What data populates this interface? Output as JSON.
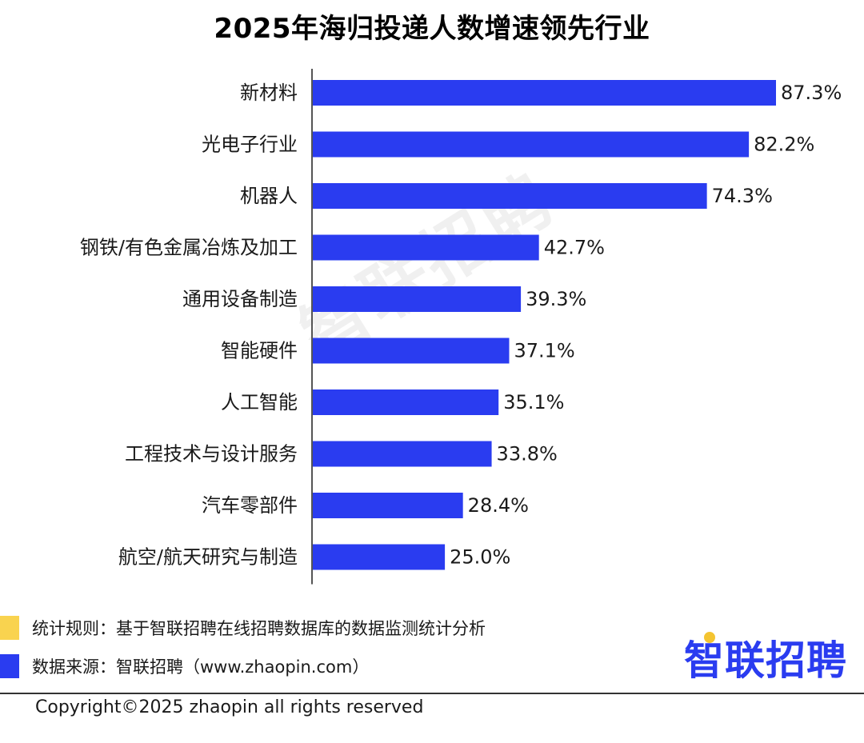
{
  "title": "2025年海归投递人数增速领先行业",
  "watermark": "智联招聘",
  "chart_data": {
    "type": "bar",
    "orientation": "horizontal",
    "title": "2025年海归投递人数增速领先行业",
    "categories": [
      "新材料",
      "光电子行业",
      "机器人",
      "钢铁/有色金属冶炼及加工",
      "通用设备制造",
      "智能硬件",
      "人工智能",
      "工程技术与设计服务",
      "汽车零部件",
      "航空/航天研究与制造"
    ],
    "values": [
      87.3,
      82.2,
      74.3,
      42.7,
      39.3,
      37.1,
      35.1,
      33.8,
      28.4,
      25.0
    ],
    "value_labels": [
      "87.3%",
      "82.2%",
      "74.3%",
      "42.7%",
      "39.3%",
      "37.1%",
      "35.1%",
      "33.8%",
      "28.4%",
      "25.0%"
    ],
    "bar_color": "#2a3cf0",
    "xlim": [
      0,
      87.3
    ],
    "grid": false,
    "legend": "none"
  },
  "notes": {
    "rule": "统计规则：基于智联招聘在线招聘数据库的数据监测统计分析",
    "source": "数据来源：智联招聘（www.zhaopin.com）",
    "rule_color": "#f9d34f",
    "source_color": "#2a3cf0"
  },
  "logo": "智联招聘",
  "copyright": "Copyright©2025 zhaopin all rights reserved"
}
